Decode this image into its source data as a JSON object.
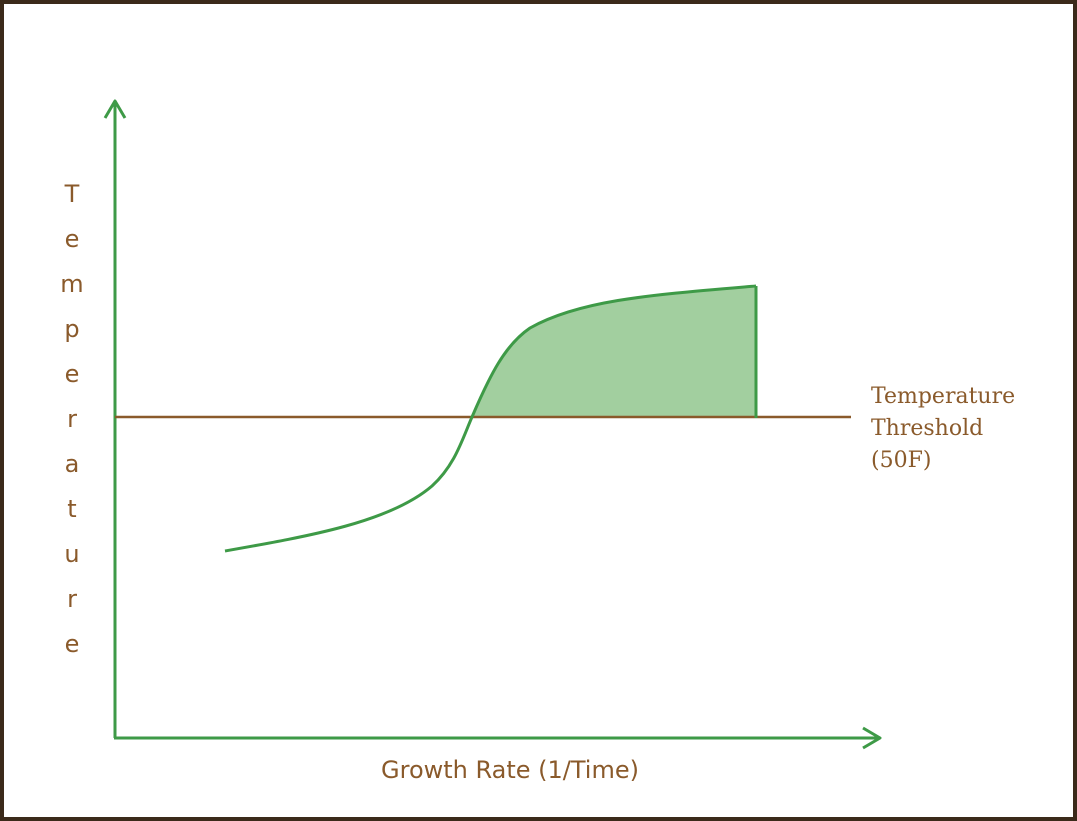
{
  "diagram": {
    "y_axis_label": "Temperature",
    "x_axis_label": "Growth Rate (1/Time)",
    "threshold_label": {
      "line1": "Temperature",
      "line2": "Threshold",
      "line3": "(50F)"
    },
    "colors": {
      "axis": "#3e9a47",
      "curve": "#3e9a47",
      "fill": "#a2cf9f",
      "threshold_line": "#8a5a2b",
      "text": "#8a5a2b",
      "border": "#3b2a1a"
    }
  }
}
